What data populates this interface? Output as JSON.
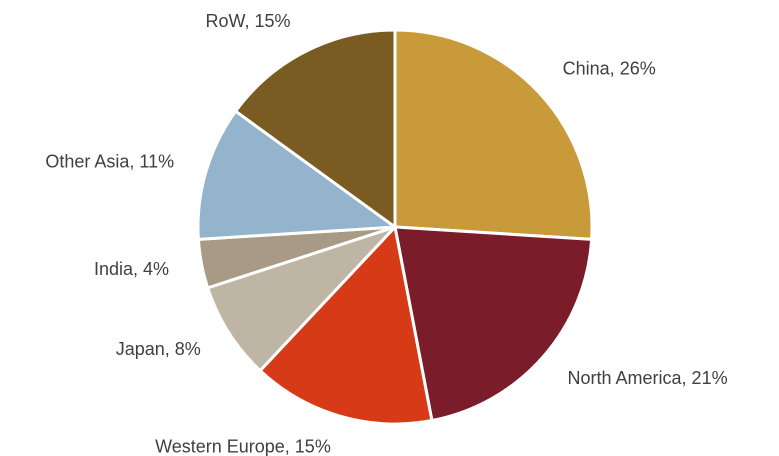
{
  "chart_data": {
    "type": "pie",
    "values": [
      26,
      21,
      15,
      8,
      4,
      11,
      15
    ],
    "value_labels": [
      "China, 26%",
      "North America, 21%",
      "Western Europe, 15%",
      "Japan, 8%",
      "India, 4%",
      "Other Asia, 11%",
      "RoW, 15%"
    ],
    "colors": [
      "#c89a3a",
      "#7b1c2a",
      "#d63a16",
      "#bfb5a5",
      "#a89a84",
      "#94b3cd",
      "#7a5c22"
    ]
  }
}
